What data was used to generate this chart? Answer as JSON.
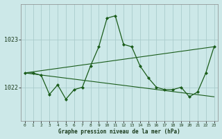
{
  "title": "Graphe pression niveau de la mer (hPa)",
  "bg_color": "#cce8e8",
  "line_color": "#1a5c1a",
  "grid_color": "#aacccc",
  "ylim": [
    1021.3,
    1023.75
  ],
  "xlim": [
    -0.5,
    23.5
  ],
  "yticks": [
    1022,
    1023
  ],
  "xlabel_color": "#1a3a1a",
  "series1": {
    "x": [
      0,
      1,
      2,
      3,
      4,
      5,
      6,
      7,
      8,
      9,
      10,
      11,
      12,
      13,
      14,
      15,
      16,
      17,
      18,
      19,
      20,
      21,
      22,
      23
    ],
    "y": [
      1022.3,
      1022.3,
      1022.25,
      1021.85,
      1022.05,
      1021.75,
      1021.95,
      1022.0,
      1022.45,
      1022.85,
      1023.45,
      1023.5,
      1022.9,
      1022.85,
      1022.45,
      1022.2,
      1022.0,
      1021.95,
      1021.95,
      1022.0,
      1021.8,
      1021.9,
      1022.3,
      1022.85
    ]
  },
  "series2": {
    "x": [
      0,
      23
    ],
    "y": [
      1022.3,
      1022.85
    ]
  },
  "series3": {
    "x": [
      0,
      23
    ],
    "y": [
      1022.3,
      1021.8
    ]
  }
}
